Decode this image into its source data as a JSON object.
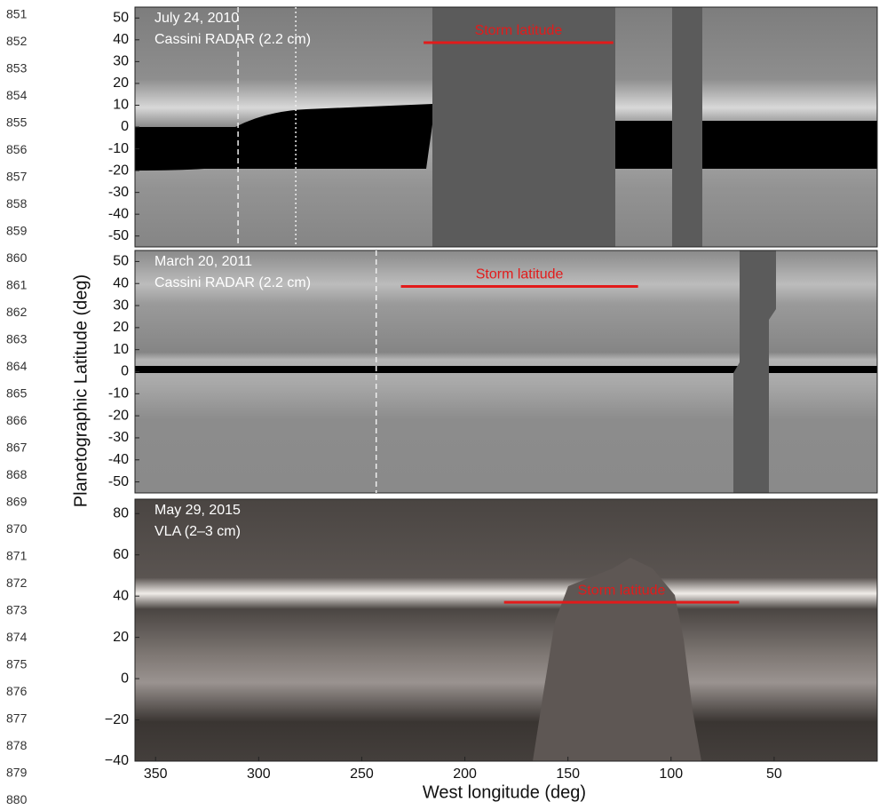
{
  "line_numbers": [
    851,
    852,
    853,
    854,
    855,
    856,
    857,
    858,
    859,
    860,
    861,
    862,
    863,
    864,
    865,
    866,
    867,
    868,
    869,
    870,
    871,
    872,
    873,
    874,
    875,
    876,
    877,
    878,
    879,
    880
  ],
  "chart_data": {
    "type": "map-panels",
    "y_label": "Planetographic Latitude (deg)",
    "x_label": "West longitude (deg)",
    "xlim": [
      360,
      0
    ],
    "xticks": [
      350,
      300,
      250,
      200,
      150,
      100,
      50
    ],
    "panels": [
      {
        "date": "July 24, 2010",
        "instrument": "Cassini RADAR (2.2 cm)",
        "annotation": "Storm latitude",
        "ylim": [
          -55,
          55
        ],
        "yticks": [
          50,
          40,
          30,
          20,
          10,
          0,
          -10,
          -20,
          -30,
          -40,
          -50
        ],
        "storm_latitude": 38.7,
        "storm_lon": [
          220,
          128
        ],
        "dashed_lon": [
          310
        ],
        "dotted_lon": [
          282
        ]
      },
      {
        "date": "March 20, 2011",
        "instrument": "Cassini RADAR (2.2 cm)",
        "annotation": "Storm latitude",
        "ylim": [
          -55,
          55
        ],
        "yticks": [
          50,
          40,
          30,
          20,
          10,
          0,
          -10,
          -20,
          -30,
          -40,
          -50
        ],
        "storm_latitude": 38.7,
        "storm_lon": [
          231,
          116
        ],
        "dashed_lon": [
          243
        ],
        "dotted_lon": []
      },
      {
        "date": "May 29, 2015",
        "instrument": "VLA (2–3 cm)",
        "annotation": "Storm latitude",
        "ylim": [
          -40,
          87
        ],
        "yticks": [
          80,
          60,
          40,
          20,
          0,
          {
            "value": -20,
            "label": "−20"
          },
          {
            "value": -40,
            "label": "−40"
          }
        ],
        "storm_latitude": 37,
        "storm_lon": [
          181,
          67
        ],
        "dashed_lon": [],
        "dotted_lon": []
      }
    ]
  }
}
